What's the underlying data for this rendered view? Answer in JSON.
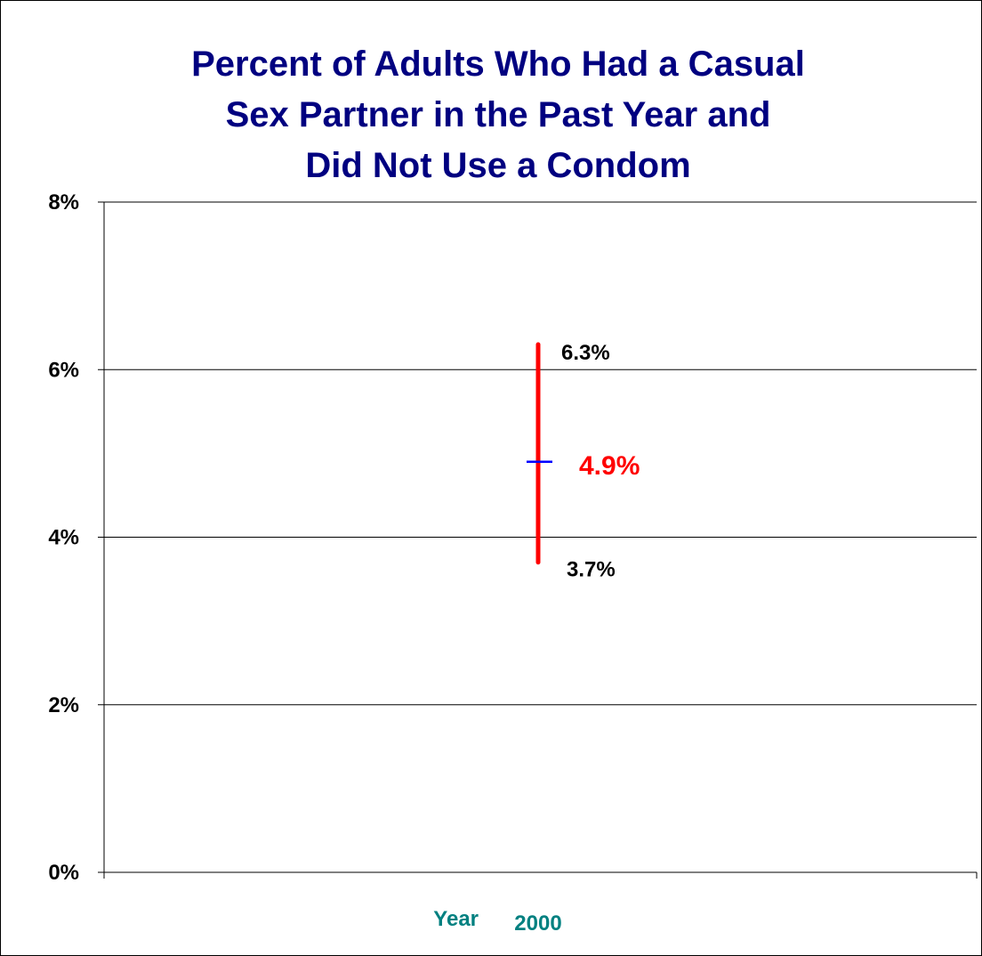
{
  "colors": {
    "title": "#000080",
    "error_bar": "#ff0000",
    "estimate_marker": "#0000ff",
    "estimate_label": "#ff0000",
    "x_axis_label": "#008080",
    "gridline": "#000000"
  },
  "chart_data": {
    "type": "errorbar",
    "title_lines": [
      "Percent of Adults Who Had a Casual",
      "Sex Partner in the Past Year and",
      "Did Not Use a Condom"
    ],
    "xlabel": "Year",
    "categories": [
      "2000"
    ],
    "ylim": [
      0,
      8
    ],
    "y_ticks": [
      0,
      2,
      4,
      6,
      8
    ],
    "y_tick_labels": [
      "0%",
      "2%",
      "4%",
      "6%",
      "8%"
    ],
    "grid": true,
    "points": [
      {
        "category": "2000",
        "estimate": 4.9,
        "lower": 3.7,
        "upper": 6.3,
        "estimate_label": "4.9%",
        "lower_label": "3.7%",
        "upper_label": "6.3%"
      }
    ]
  }
}
